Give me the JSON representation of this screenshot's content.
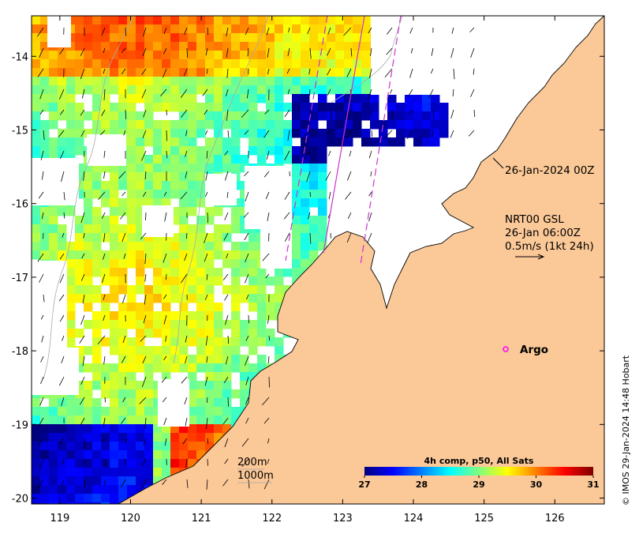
{
  "map": {
    "y_ticks": [
      "-14",
      "-15",
      "-16",
      "-17",
      "-18",
      "-19",
      "-20"
    ],
    "x_ticks": [
      "119",
      "120",
      "121",
      "122",
      "123",
      "124",
      "125",
      "126"
    ],
    "lat_range": [
      -20.08,
      -13.45
    ],
    "lon_range": [
      118.6,
      126.7
    ],
    "colors": {
      "land": "#fbc897",
      "coast": "#000000",
      "track": "#cc33cc",
      "argo": "#ff00ff",
      "bathy": "#aaaaaa"
    }
  },
  "annotations": {
    "track_date": "26-Jan-2024 00Z",
    "current_source": "NRT00 GSL",
    "current_time": "26-Jan 06:00Z",
    "current_scale": "0.5m/s (1kt 24h)",
    "argo_label": "Argo",
    "depth_200": "200m",
    "depth_1000": "1000m",
    "side_credit": "© IMOS 29-Jan-2024 14:48 Hobart"
  },
  "colorbar": {
    "title": "4h comp, p50, All Sats",
    "min": 27,
    "max": 31,
    "ticks": [
      "27",
      "28",
      "29",
      "30",
      "31"
    ],
    "stops": [
      "#00007f",
      "#0000ff",
      "#0080ff",
      "#00ffff",
      "#80ff80",
      "#ffff00",
      "#ff8000",
      "#ff0000",
      "#7f0000"
    ]
  }
}
